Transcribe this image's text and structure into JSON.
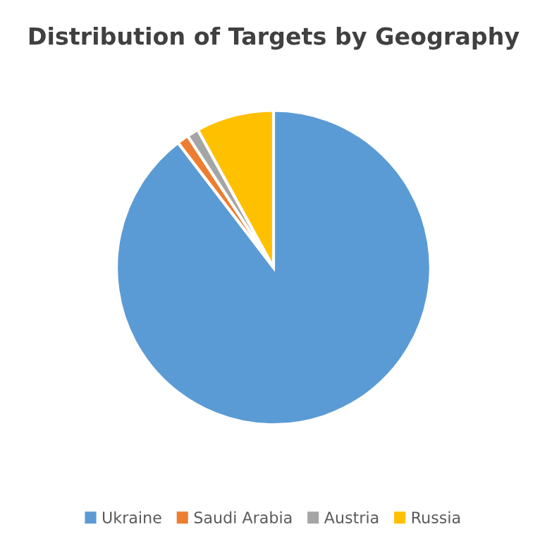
{
  "chart_data": {
    "type": "pie",
    "title": "Distribution of Targets by Geography",
    "categories": [
      "Ukraine",
      "Saudi Arabia",
      "Austria",
      "Russia"
    ],
    "values": [
      89.6,
      1.2,
      1.2,
      8
    ],
    "colors": [
      "#5b9bd5",
      "#ed7d31",
      "#a5a5a5",
      "#ffc000"
    ],
    "legend": "bottom"
  }
}
